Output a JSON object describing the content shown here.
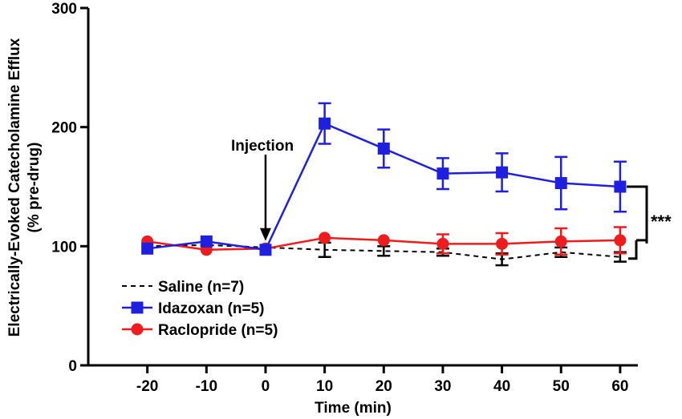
{
  "chart_data": {
    "type": "line",
    "title": "",
    "xlabel": "Time (min)",
    "ylabel_line1": "Electrically-Evoked Catecholamine Efflux",
    "ylabel_line2": "(% pre-drug)",
    "xlim": [
      -30,
      63
    ],
    "ylim": [
      0,
      300
    ],
    "x_ticks": [
      -20,
      -10,
      0,
      10,
      20,
      30,
      40,
      50,
      60
    ],
    "x_tick_labels": [
      "-20",
      "-10",
      "0",
      "10",
      "20",
      "30",
      "40",
      "50",
      "60"
    ],
    "y_ticks": [
      0,
      100,
      200,
      300
    ],
    "y_tick_labels": [
      "0",
      "100",
      "200",
      "300"
    ],
    "x": [
      -20,
      -10,
      0,
      10,
      20,
      30,
      40,
      50,
      60
    ],
    "series": [
      {
        "name": "Saline (n=7)",
        "style": "dashed",
        "marker": "none",
        "color": "#000000",
        "values": [
          100,
          101,
          99,
          97,
          96,
          95,
          89,
          95,
          91
        ],
        "err": [
          0,
          0,
          0,
          6,
          4,
          3,
          5,
          4,
          4
        ]
      },
      {
        "name": "Idazoxan (n=5)",
        "style": "solid",
        "marker": "square",
        "color": "#1f1fe0",
        "values": [
          98,
          104,
          97,
          203,
          182,
          161,
          162,
          153,
          150
        ],
        "err": [
          0,
          0,
          0,
          17,
          16,
          13,
          16,
          22,
          21
        ]
      },
      {
        "name": "Raclopride (n=5)",
        "style": "solid",
        "marker": "circle",
        "color": "#ee1c1c",
        "values": [
          104,
          97,
          98,
          107,
          105,
          102,
          102,
          104,
          105
        ],
        "err": [
          0,
          0,
          0,
          0,
          0,
          8,
          9,
          11,
          11
        ]
      }
    ],
    "annotations": {
      "injection_label": "Injection",
      "injection_x": 0,
      "significance": "***"
    },
    "legend_position": "bottom-left"
  }
}
